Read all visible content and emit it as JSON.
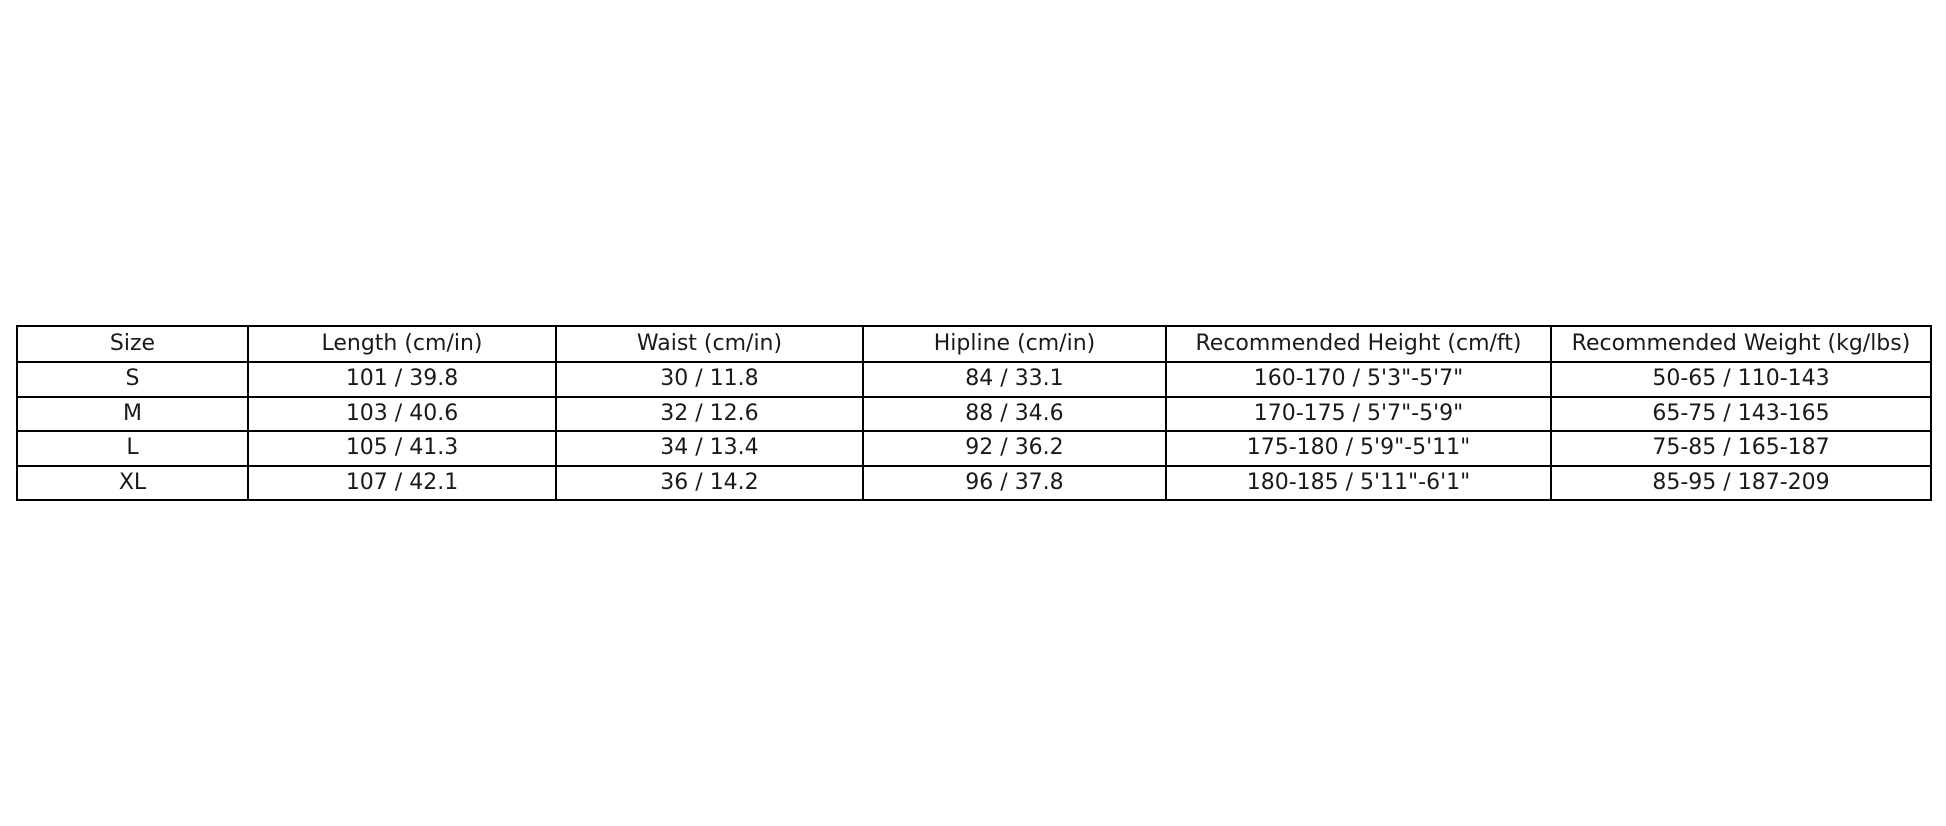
{
  "colors": {
    "background": "#ffffff",
    "border": "#000000",
    "text": "#1a1a1a"
  },
  "table": {
    "headers": [
      "Size",
      "Length (cm/in)",
      "Waist (cm/in)",
      "Hipline (cm/in)",
      "Recommended Height (cm/ft)",
      "Recommended Weight (kg/lbs)"
    ],
    "rows": [
      [
        "S",
        "101 / 39.8",
        "30 / 11.8",
        "84 / 33.1",
        "160-170 / 5'3\"-5'7\"",
        "50-65 / 110-143"
      ],
      [
        "M",
        "103 / 40.6",
        "32 / 12.6",
        "88 / 34.6",
        "170-175 / 5'7\"-5'9\"",
        "65-75 / 143-165"
      ],
      [
        "L",
        "105 / 41.3",
        "34 / 13.4",
        "92 / 36.2",
        "175-180 / 5'9\"-5'11\"",
        "75-85 / 165-187"
      ],
      [
        "XL",
        "107 / 42.1",
        "36 / 14.2",
        "96 / 37.8",
        "180-185 / 5'11\"-6'1\"",
        "85-95 / 187-209"
      ]
    ]
  },
  "chart_data": {
    "type": "table",
    "title": "",
    "columns": [
      "Size",
      "Length (cm/in)",
      "Waist (cm/in)",
      "Hipline (cm/in)",
      "Recommended Height (cm/ft)",
      "Recommended Weight (kg/lbs)"
    ],
    "rows": [
      [
        "S",
        "101 / 39.8",
        "30 / 11.8",
        "84 / 33.1",
        "160-170 / 5'3\"-5'7\"",
        "50-65 / 110-143"
      ],
      [
        "M",
        "103 / 40.6",
        "32 / 12.6",
        "88 / 34.6",
        "170-175 / 5'7\"-5'9\"",
        "65-75 / 143-165"
      ],
      [
        "L",
        "105 / 41.3",
        "34 / 13.4",
        "92 / 36.2",
        "175-180 / 5'9\"-5'11\"",
        "75-85 / 165-187"
      ],
      [
        "XL",
        "107 / 42.1",
        "36 / 14.2",
        "96 / 37.8",
        "180-185 / 5'11\"-6'1\"",
        "85-95 / 187-209"
      ]
    ],
    "layout_hints": {
      "grid": "all-borders",
      "header_row": true,
      "cell_alignment": "center",
      "border_color": "#000000",
      "background": "#ffffff"
    }
  }
}
